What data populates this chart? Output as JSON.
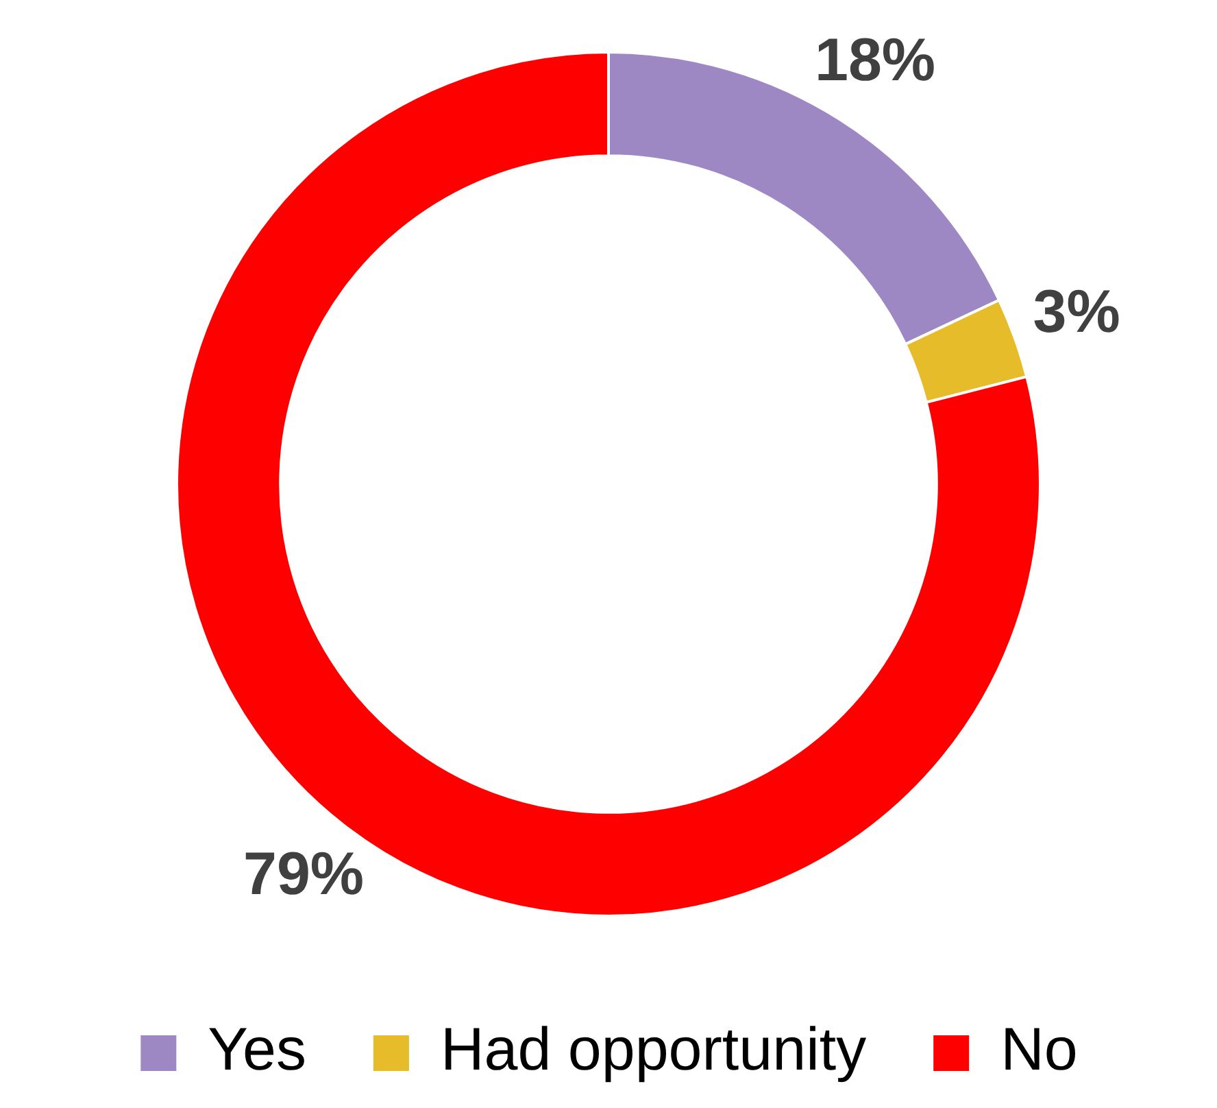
{
  "chart_data": {
    "type": "donut",
    "categories": [
      "Yes",
      "Had opportunity",
      "No"
    ],
    "values": [
      18,
      3,
      79
    ],
    "colors": [
      "#9e88c4",
      "#e6bc2a",
      "#ff0000"
    ],
    "value_labels": [
      "18%",
      "3%",
      "79%"
    ],
    "legend": "bottom"
  }
}
